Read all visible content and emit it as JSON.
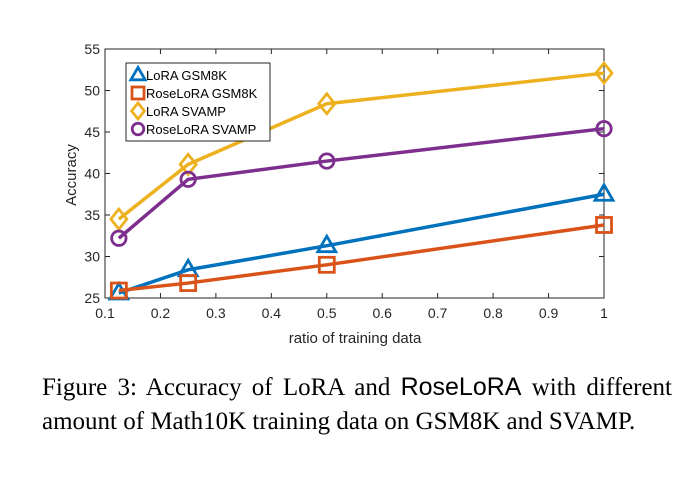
{
  "chart_data": {
    "type": "line",
    "title": "",
    "xlabel": "ratio of training data",
    "ylabel": "Accuracy",
    "x": [
      0.125,
      0.25,
      0.5,
      1
    ],
    "xlim": [
      0.1,
      1
    ],
    "ylim": [
      25,
      55
    ],
    "xticks": [
      "0.1",
      "0.2",
      "0.3",
      "0.4",
      "0.5",
      "0.6",
      "0.7",
      "0.8",
      "0.9",
      "1"
    ],
    "yticks": [
      "25",
      "30",
      "35",
      "40",
      "45",
      "50",
      "55"
    ],
    "legend_position": "top-left",
    "grid": false,
    "series": [
      {
        "name": "LoRA GSM8K",
        "values": [
          25.6,
          28.4,
          31.3,
          37.5
        ],
        "color": "#0072BD",
        "marker": "triangle"
      },
      {
        "name": "RoseLoRA GSM8K",
        "values": [
          25.9,
          26.8,
          29.0,
          33.8
        ],
        "color": "#D95319",
        "marker": "square"
      },
      {
        "name": "LoRA SVAMP",
        "values": [
          34.5,
          41.1,
          48.4,
          52.1
        ],
        "color": "#EDB120",
        "marker": "diamond"
      },
      {
        "name": "RoseLoRA SVAMP",
        "values": [
          32.2,
          39.3,
          41.5,
          45.4
        ],
        "color": "#7E2F8E",
        "marker": "circle"
      }
    ]
  },
  "caption": {
    "part1": "Figure 3:  Accuracy of LoRA and ",
    "part2": "RoseLoRA",
    "part3": " with different amount of Math10K training data on GSM8K and SVAMP."
  }
}
